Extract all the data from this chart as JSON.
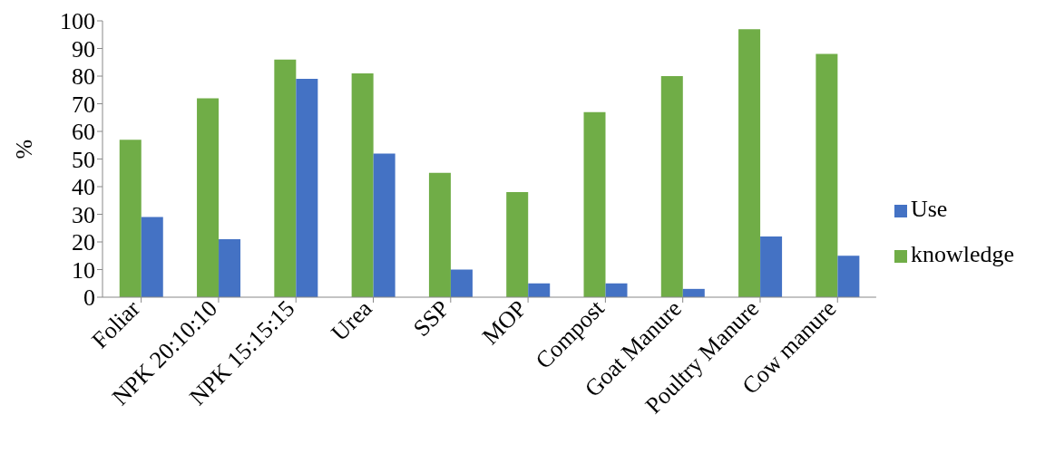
{
  "chart_data": {
    "type": "bar",
    "ylabel": "%",
    "categories": [
      "Foliar",
      "NPK 20:10:10",
      "NPK 15:15:15",
      "Urea",
      "SSP",
      "MOP",
      "Compost",
      "Goat Manure",
      "Poultry Manure",
      "Cow manure"
    ],
    "series": [
      {
        "name": "knowledge",
        "color": "#70ad47",
        "values": [
          57,
          72,
          86,
          81,
          45,
          38,
          67,
          80,
          97,
          88
        ]
      },
      {
        "name": "Use",
        "color": "#4472c4",
        "values": [
          29,
          21,
          79,
          52,
          10,
          5,
          5,
          3,
          22,
          15
        ]
      }
    ],
    "ylim": [
      0,
      100
    ],
    "yticks": [
      0,
      10,
      20,
      30,
      40,
      50,
      60,
      70,
      80,
      90,
      100
    ],
    "grid": false,
    "legend": "right"
  }
}
